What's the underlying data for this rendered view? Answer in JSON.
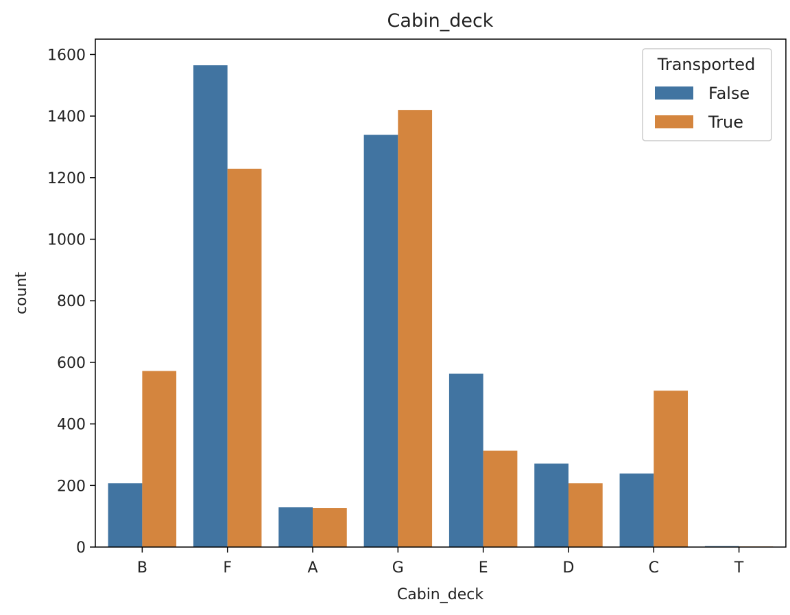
{
  "chart_data": {
    "type": "bar",
    "title": "Cabin_deck",
    "xlabel": "Cabin_deck",
    "ylabel": "count",
    "categories": [
      "B",
      "F",
      "A",
      "G",
      "E",
      "D",
      "C",
      "T"
    ],
    "series": [
      {
        "name": "False",
        "color": "#4174a1",
        "values": [
          207,
          1565,
          129,
          1339,
          563,
          271,
          239,
          3
        ]
      },
      {
        "name": "True",
        "color": "#d4853e",
        "values": [
          572,
          1229,
          127,
          1420,
          313,
          207,
          508,
          2
        ]
      }
    ],
    "ylim": [
      0,
      1650
    ],
    "yticks": [
      0,
      200,
      400,
      600,
      800,
      1000,
      1200,
      1400,
      1600
    ],
    "grid": false,
    "legend": {
      "title": "Transported",
      "placement": "upper right"
    }
  }
}
